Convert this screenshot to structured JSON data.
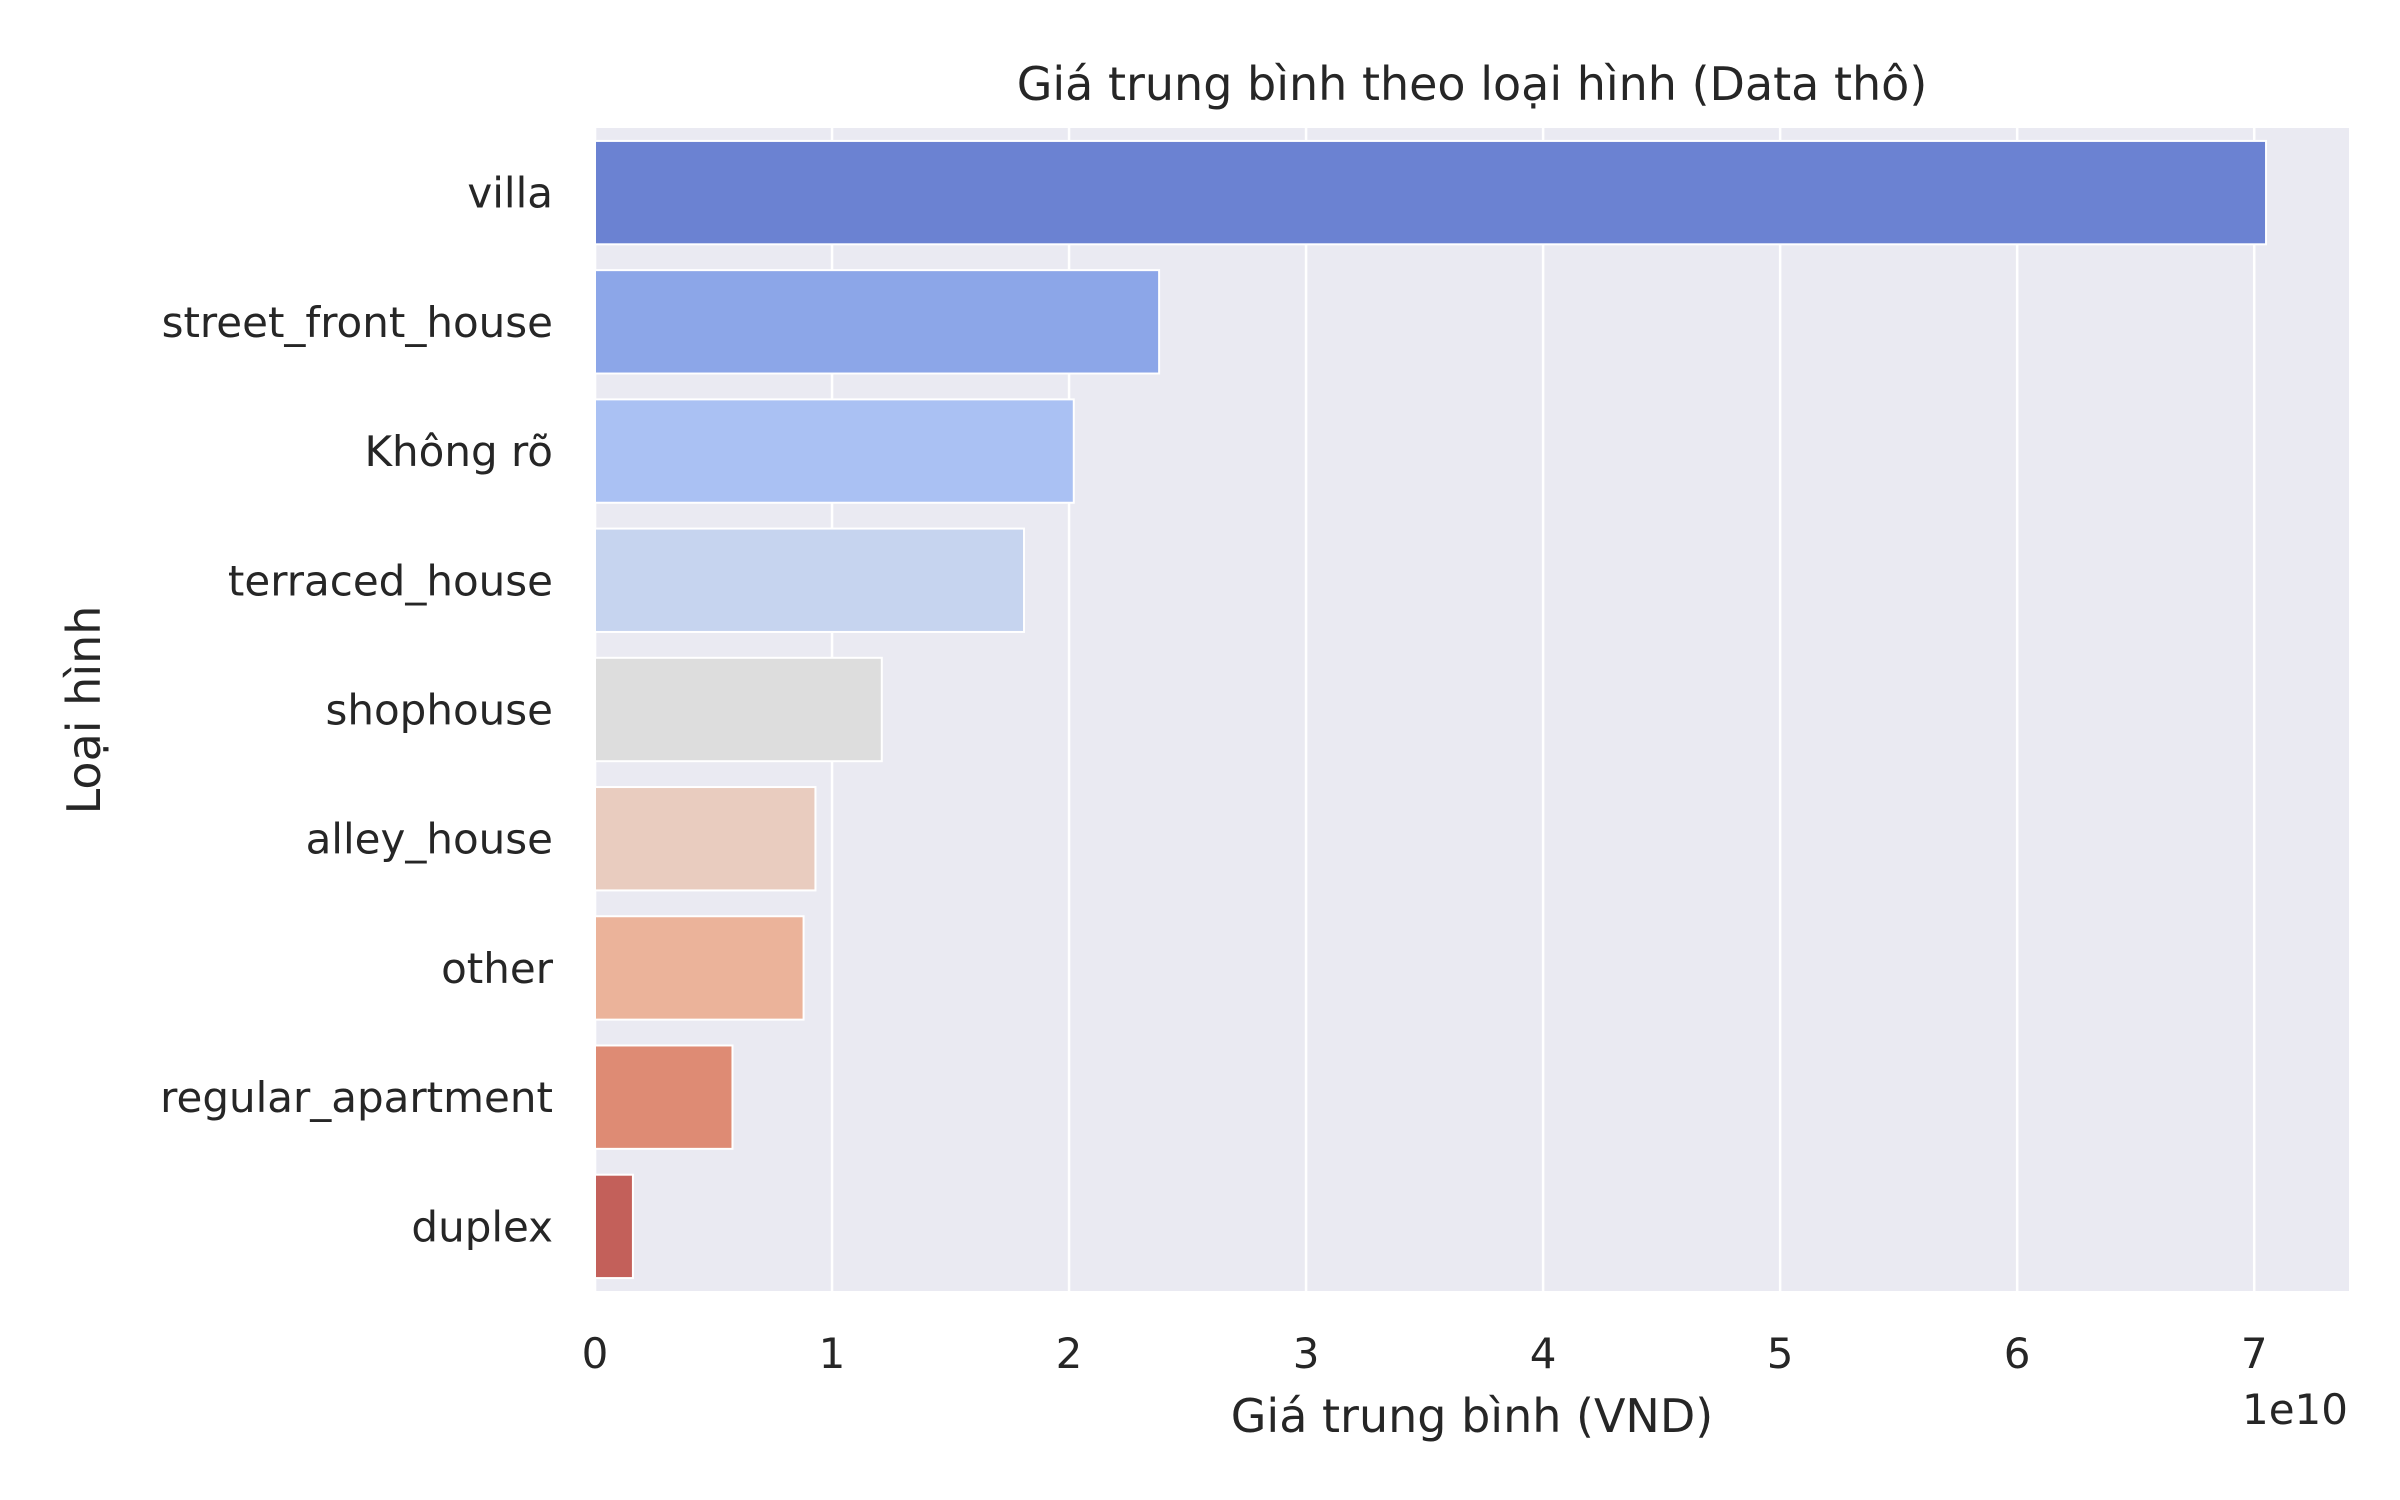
{
  "chart_data": {
    "type": "bar",
    "orientation": "horizontal",
    "title": "Giá trung bình theo loại hình (Data thô)",
    "xlabel": "Giá trung bình (VND)",
    "ylabel": "Loại hình",
    "x_offset_label": "1e10",
    "x_scale": 10000000000,
    "xlim": [
      0,
      7.4
    ],
    "xticks": [
      "0",
      "1",
      "2",
      "3",
      "4",
      "5",
      "6",
      "7"
    ],
    "grid": true,
    "categories": [
      "villa",
      "street_front_house",
      "Không rõ",
      "terraced_house",
      "shophouse",
      "alley_house",
      "other",
      "regular_apartment",
      "duplex"
    ],
    "values": [
      7.05,
      2.38,
      2.02,
      1.81,
      1.21,
      0.93,
      0.88,
      0.58,
      0.16
    ],
    "colors": [
      "#6b82d2",
      "#8ca6e8",
      "#aac1f3",
      "#c6d4ef",
      "#dddddd",
      "#e9ccbf",
      "#ebb39a",
      "#de8b74",
      "#c3605a"
    ]
  }
}
